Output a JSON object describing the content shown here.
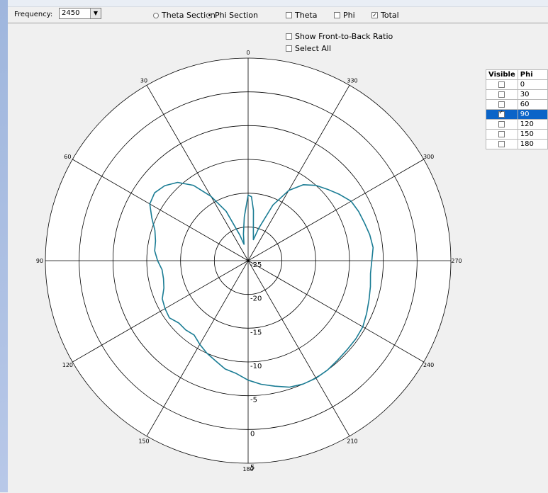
{
  "toolbar": {
    "frequency_label": "Frequency:",
    "frequency_value": "2450",
    "theta_section_label": "Theta Section",
    "phi_section_label": "Phi Section",
    "section_selected": "phi",
    "theta_label": "Theta",
    "phi_label": "Phi",
    "total_label": "Total",
    "theta_checked": false,
    "phi_checked": false,
    "total_checked": true
  },
  "options": {
    "front_to_back_label": "Show Front-to-Back Ratio",
    "select_all_label": "Select All"
  },
  "phi_table": {
    "headers": [
      "Visible",
      "Phi"
    ],
    "rows": [
      {
        "phi": "0",
        "visible": false
      },
      {
        "phi": "30",
        "visible": false
      },
      {
        "phi": "60",
        "visible": false
      },
      {
        "phi": "90",
        "visible": true,
        "selected": true
      },
      {
        "phi": "120",
        "visible": false
      },
      {
        "phi": "150",
        "visible": false
      },
      {
        "phi": "180",
        "visible": false
      }
    ]
  },
  "chart_data": {
    "type": "polar-line",
    "angle_ticks": [
      "0",
      "30",
      "60",
      "90",
      "120",
      "150",
      "180",
      "210",
      "240",
      "270",
      "300",
      "330"
    ],
    "radial_ticks": [
      -25,
      -20,
      -15,
      -10,
      -5,
      0,
      5
    ],
    "rlim": [
      -25,
      5
    ],
    "grid": true,
    "series_color": "#1a7c94",
    "series": [
      {
        "name": "",
        "points": [
          [
            0,
            -15.3
          ],
          [
            5,
            -18.5
          ],
          [
            10,
            -21.0
          ],
          [
            14,
            -22.5
          ],
          [
            18,
            -21.0
          ],
          [
            24,
            -17.0
          ],
          [
            30,
            -14.0
          ],
          [
            36,
            -11.2
          ],
          [
            42,
            -9.4
          ],
          [
            48,
            -8.4
          ],
          [
            54,
            -7.9
          ],
          [
            60,
            -8.2
          ],
          [
            66,
            -9.4
          ],
          [
            72,
            -10.5
          ],
          [
            78,
            -11.0
          ],
          [
            84,
            -11.1
          ],
          [
            90,
            -11.6
          ],
          [
            96,
            -12.2
          ],
          [
            102,
            -12.2
          ],
          [
            108,
            -11.9
          ],
          [
            114,
            -11.1
          ],
          [
            120,
            -10.8
          ],
          [
            126,
            -10.6
          ],
          [
            132,
            -11.2
          ],
          [
            138,
            -11.2
          ],
          [
            144,
            -11.4
          ],
          [
            150,
            -10.7
          ],
          [
            156,
            -10.0
          ],
          [
            162,
            -9.4
          ],
          [
            168,
            -8.6
          ],
          [
            174,
            -8.2
          ],
          [
            180,
            -7.3
          ],
          [
            186,
            -6.6
          ],
          [
            192,
            -6.0
          ],
          [
            198,
            -5.3
          ],
          [
            204,
            -5.0
          ],
          [
            210,
            -4.9
          ],
          [
            216,
            -5.0
          ],
          [
            222,
            -5.2
          ],
          [
            228,
            -5.3
          ],
          [
            234,
            -5.3
          ],
          [
            240,
            -5.4
          ],
          [
            246,
            -5.8
          ],
          [
            252,
            -6.2
          ],
          [
            258,
            -6.5
          ],
          [
            264,
            -6.8
          ],
          [
            270,
            -6.7
          ],
          [
            276,
            -6.4
          ],
          [
            282,
            -6.6
          ],
          [
            288,
            -6.9
          ],
          [
            294,
            -7.1
          ],
          [
            300,
            -7.4
          ],
          [
            306,
            -8.3
          ],
          [
            312,
            -9.2
          ],
          [
            318,
            -10.0
          ],
          [
            324,
            -11.1
          ],
          [
            330,
            -13.0
          ],
          [
            336,
            -16.0
          ],
          [
            342,
            -20.0
          ],
          [
            346,
            -21.8
          ],
          [
            350,
            -20.5
          ],
          [
            354,
            -17.5
          ],
          [
            357,
            -15.5
          ],
          [
            360,
            -15.3
          ]
        ]
      }
    ]
  }
}
